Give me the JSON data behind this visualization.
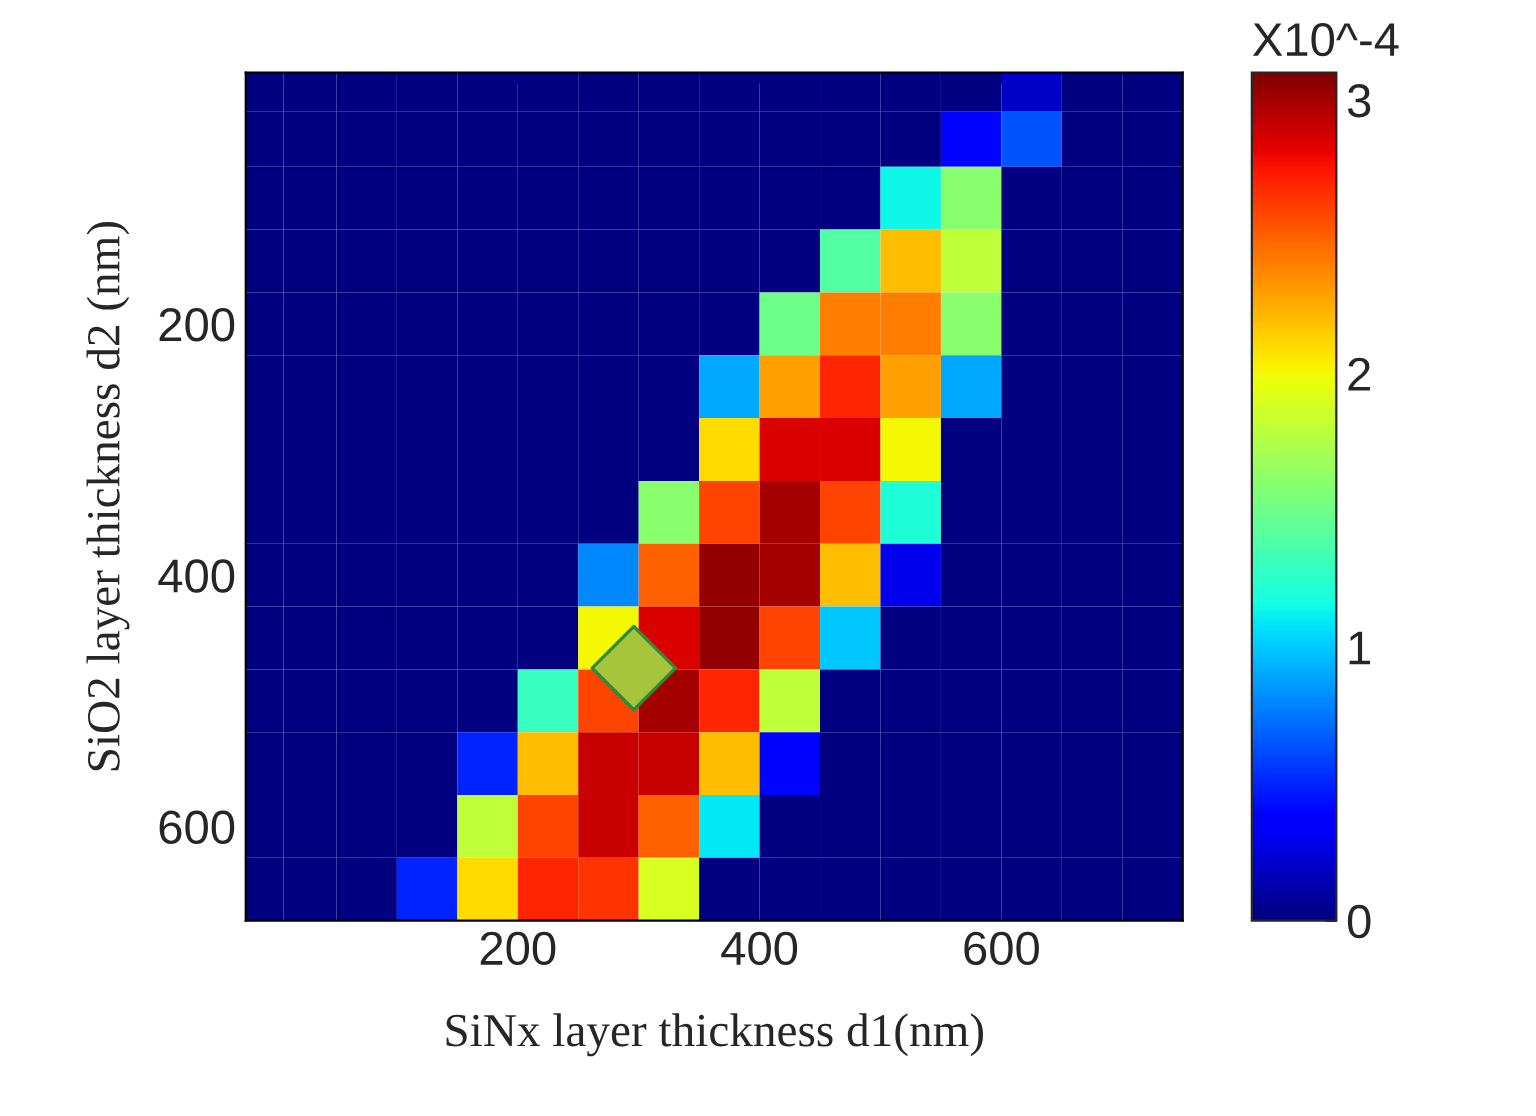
{
  "chart_data": {
    "type": "heatmap",
    "xlabel": "SiNx layer thickness d1(nm)",
    "ylabel": "SiO2 layer thickness d2 (nm)",
    "clabel": "X10^-4",
    "x": [
      -12.5,
      25,
      75,
      125,
      175,
      225,
      275,
      325,
      375,
      425,
      475,
      525,
      575,
      625,
      675,
      725
    ],
    "y": [
      12.5,
      50,
      100,
      150,
      200,
      250,
      300,
      350,
      400,
      450,
      500,
      550,
      600,
      650
    ],
    "cells": [
      [
        0,
        0,
        0,
        0,
        0,
        0,
        0,
        0,
        0,
        0,
        0,
        0,
        0,
        0.2,
        0,
        0
      ],
      [
        0,
        0,
        0,
        0,
        0,
        0,
        0,
        0,
        0,
        0,
        0,
        0,
        0.4,
        0.65,
        0,
        0
      ],
      [
        0,
        0,
        0,
        0,
        0,
        0,
        0,
        0,
        0,
        0,
        0,
        1.15,
        1.6,
        0,
        0,
        0
      ],
      [
        0,
        0,
        0,
        0,
        0,
        0,
        0,
        0,
        0,
        0,
        1.4,
        2.2,
        1.8,
        0,
        0,
        0
      ],
      [
        0,
        0,
        0,
        0,
        0,
        0,
        0,
        0,
        0,
        1.5,
        2.4,
        2.4,
        1.6,
        0,
        0,
        0
      ],
      [
        0,
        0,
        0,
        0,
        0,
        0,
        0,
        0,
        0.9,
        2.3,
        2.7,
        2.3,
        0.9,
        0,
        0,
        0
      ],
      [
        0,
        0,
        0,
        0,
        0,
        0,
        0,
        0,
        2.1,
        2.85,
        2.85,
        2.0,
        0,
        0,
        0,
        0
      ],
      [
        0,
        0,
        0,
        0,
        0,
        0,
        0,
        1.6,
        2.6,
        3.0,
        2.6,
        1.2,
        0,
        0,
        0,
        0
      ],
      [
        0,
        0,
        0,
        0,
        0,
        0,
        0.8,
        2.5,
        3.05,
        3.0,
        2.2,
        0.3,
        0,
        0,
        0,
        0
      ],
      [
        0,
        0,
        0,
        0,
        0,
        0,
        2.0,
        2.85,
        3.05,
        2.6,
        1.0,
        0,
        0,
        0,
        0,
        0
      ],
      [
        0,
        0,
        0,
        0,
        0,
        1.3,
        2.6,
        3.0,
        2.7,
        1.8,
        0,
        0,
        0,
        0,
        0,
        0
      ],
      [
        0,
        0,
        0,
        0,
        0.5,
        2.2,
        2.9,
        2.9,
        2.2,
        0.4,
        0,
        0,
        0,
        0,
        0,
        0
      ],
      [
        0,
        0,
        0,
        0,
        1.8,
        2.6,
        2.9,
        2.5,
        1.1,
        0,
        0,
        0,
        0,
        0,
        0,
        0
      ],
      [
        0,
        0,
        0,
        0.5,
        2.1,
        2.7,
        2.65,
        1.9,
        0,
        0,
        0,
        0,
        0,
        0,
        0,
        0
      ]
    ],
    "clim": [
      0,
      3.1
    ],
    "cticks": [
      0,
      1,
      2,
      3
    ],
    "series": [
      {
        "type": "scatter",
        "color": "#a8c43c",
        "x": [
          296
        ],
        "values": [
          474
        ],
        "marker": "diamond"
      }
    ],
    "xlim": [
      -25,
      750
    ],
    "ylim": [
      675,
      0
    ],
    "xticks": [
      200,
      400,
      600
    ],
    "yticks": [
      200,
      400,
      600
    ]
  }
}
